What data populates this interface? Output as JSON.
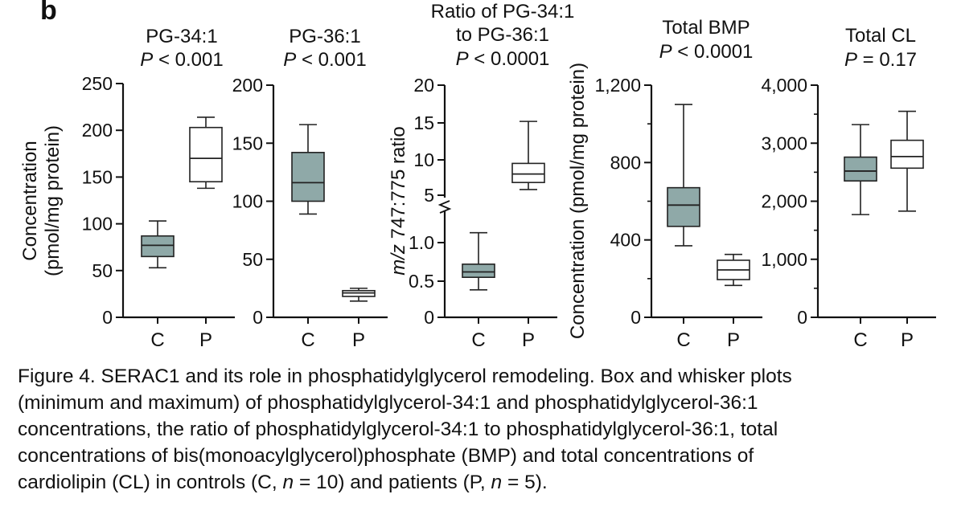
{
  "figure": {
    "panel_letter": "b",
    "caption": {
      "line1": "Figure 4. SERAC1 and its role in phosphatidylglycerol remodeling. Box and whisker plots",
      "line2": "(minimum and maximum) of phosphatidylglycerol-34:1 and phosphatidylglycerol-36:1",
      "line3": "concentrations, the ratio of phosphatidylglycerol-34:1 to phosphatidylglycerol-36:1, total",
      "line4": "concentrations of bis(monoacylglycerol)phosphate (BMP) and total concentrations of",
      "line5_a": "cardiolipin (CL) in controls (C, ",
      "n_symbol": "n",
      "line5_b": " = 10) and patients (P, ",
      "line5_c": " = 5)."
    }
  },
  "colors": {
    "control_fill": "#8fa9a8",
    "patient_fill": "#ffffff",
    "stroke": "#222222"
  },
  "chart_data": [
    {
      "type": "box",
      "title": [
        "PG-34:1",
        "P < 0.001"
      ],
      "ylabel": [
        "Concentration",
        "(pmol/mg protein)"
      ],
      "categories": [
        "C",
        "P"
      ],
      "ylim": [
        0,
        250
      ],
      "yticks": [
        0,
        50,
        100,
        150,
        200,
        250
      ],
      "ytick_labels": [
        "0",
        "50",
        "100",
        "150",
        "200",
        "250"
      ],
      "boxes": [
        {
          "min": 53,
          "q1": 65,
          "median": 77,
          "q3": 87,
          "max": 103
        },
        {
          "min": 138,
          "q1": 145,
          "median": 170,
          "q3": 203,
          "max": 214
        }
      ]
    },
    {
      "type": "box",
      "title": [
        "PG-36:1",
        "P < 0.001"
      ],
      "categories": [
        "C",
        "P"
      ],
      "ylim": [
        0,
        200
      ],
      "yticks": [
        0,
        50,
        100,
        150,
        200
      ],
      "ytick_labels": [
        "0",
        "50",
        "100",
        "150",
        "200"
      ],
      "boxes": [
        {
          "min": 89,
          "q1": 100,
          "median": 116,
          "q3": 142,
          "max": 166
        },
        {
          "min": 14,
          "q1": 18,
          "median": 21,
          "q3": 23,
          "max": 25
        }
      ]
    },
    {
      "type": "box",
      "title": [
        "Ratio of PG-34:1",
        "to PG-36:1",
        "P < 0.0001"
      ],
      "ylabel": [
        "m/z 747:775 ratio"
      ],
      "broken_axis": true,
      "categories": [
        "C",
        "P"
      ],
      "ylim": [
        0,
        20
      ],
      "yticks": [
        0,
        0.5,
        1.0,
        5,
        10,
        15,
        20
      ],
      "ytick_labels": [
        "0",
        "0.5",
        "1.0",
        "5",
        "10",
        "15",
        "20"
      ],
      "boxes": [
        {
          "min": 0.38,
          "q1": 0.55,
          "median": 0.62,
          "q3": 0.72,
          "max": 1.15
        },
        {
          "min": 5.8,
          "q1": 6.8,
          "median": 8.0,
          "q3": 9.5,
          "max": 15.2
        }
      ]
    },
    {
      "type": "box",
      "title": [
        "Total BMP",
        "P < 0.0001"
      ],
      "ylabel": [
        "Concentration (pmol/mg protein)"
      ],
      "categories": [
        "C",
        "P"
      ],
      "ylim": [
        0,
        1200
      ],
      "yticks": [
        0,
        400,
        800,
        1200
      ],
      "ytick_labels": [
        "0",
        "400",
        "800",
        "1,200"
      ],
      "yticks_minor": [
        200,
        600,
        1000
      ],
      "boxes": [
        {
          "min": 370,
          "q1": 470,
          "median": 580,
          "q3": 670,
          "max": 1100
        },
        {
          "min": 165,
          "q1": 195,
          "median": 245,
          "q3": 295,
          "max": 325
        }
      ]
    },
    {
      "type": "box",
      "title": [
        "Total CL",
        "P = 0.17"
      ],
      "categories": [
        "C",
        "P"
      ],
      "ylim": [
        0,
        4000
      ],
      "yticks": [
        0,
        1000,
        2000,
        3000,
        4000
      ],
      "ytick_labels": [
        "0",
        "1,000",
        "2,000",
        "3,000",
        "4,000"
      ],
      "yticks_minor": [
        500,
        1500,
        2500,
        3500
      ],
      "boxes": [
        {
          "min": 1770,
          "q1": 2350,
          "median": 2520,
          "q3": 2760,
          "max": 3320
        },
        {
          "min": 1830,
          "q1": 2570,
          "median": 2770,
          "q3": 3050,
          "max": 3550
        }
      ]
    }
  ]
}
